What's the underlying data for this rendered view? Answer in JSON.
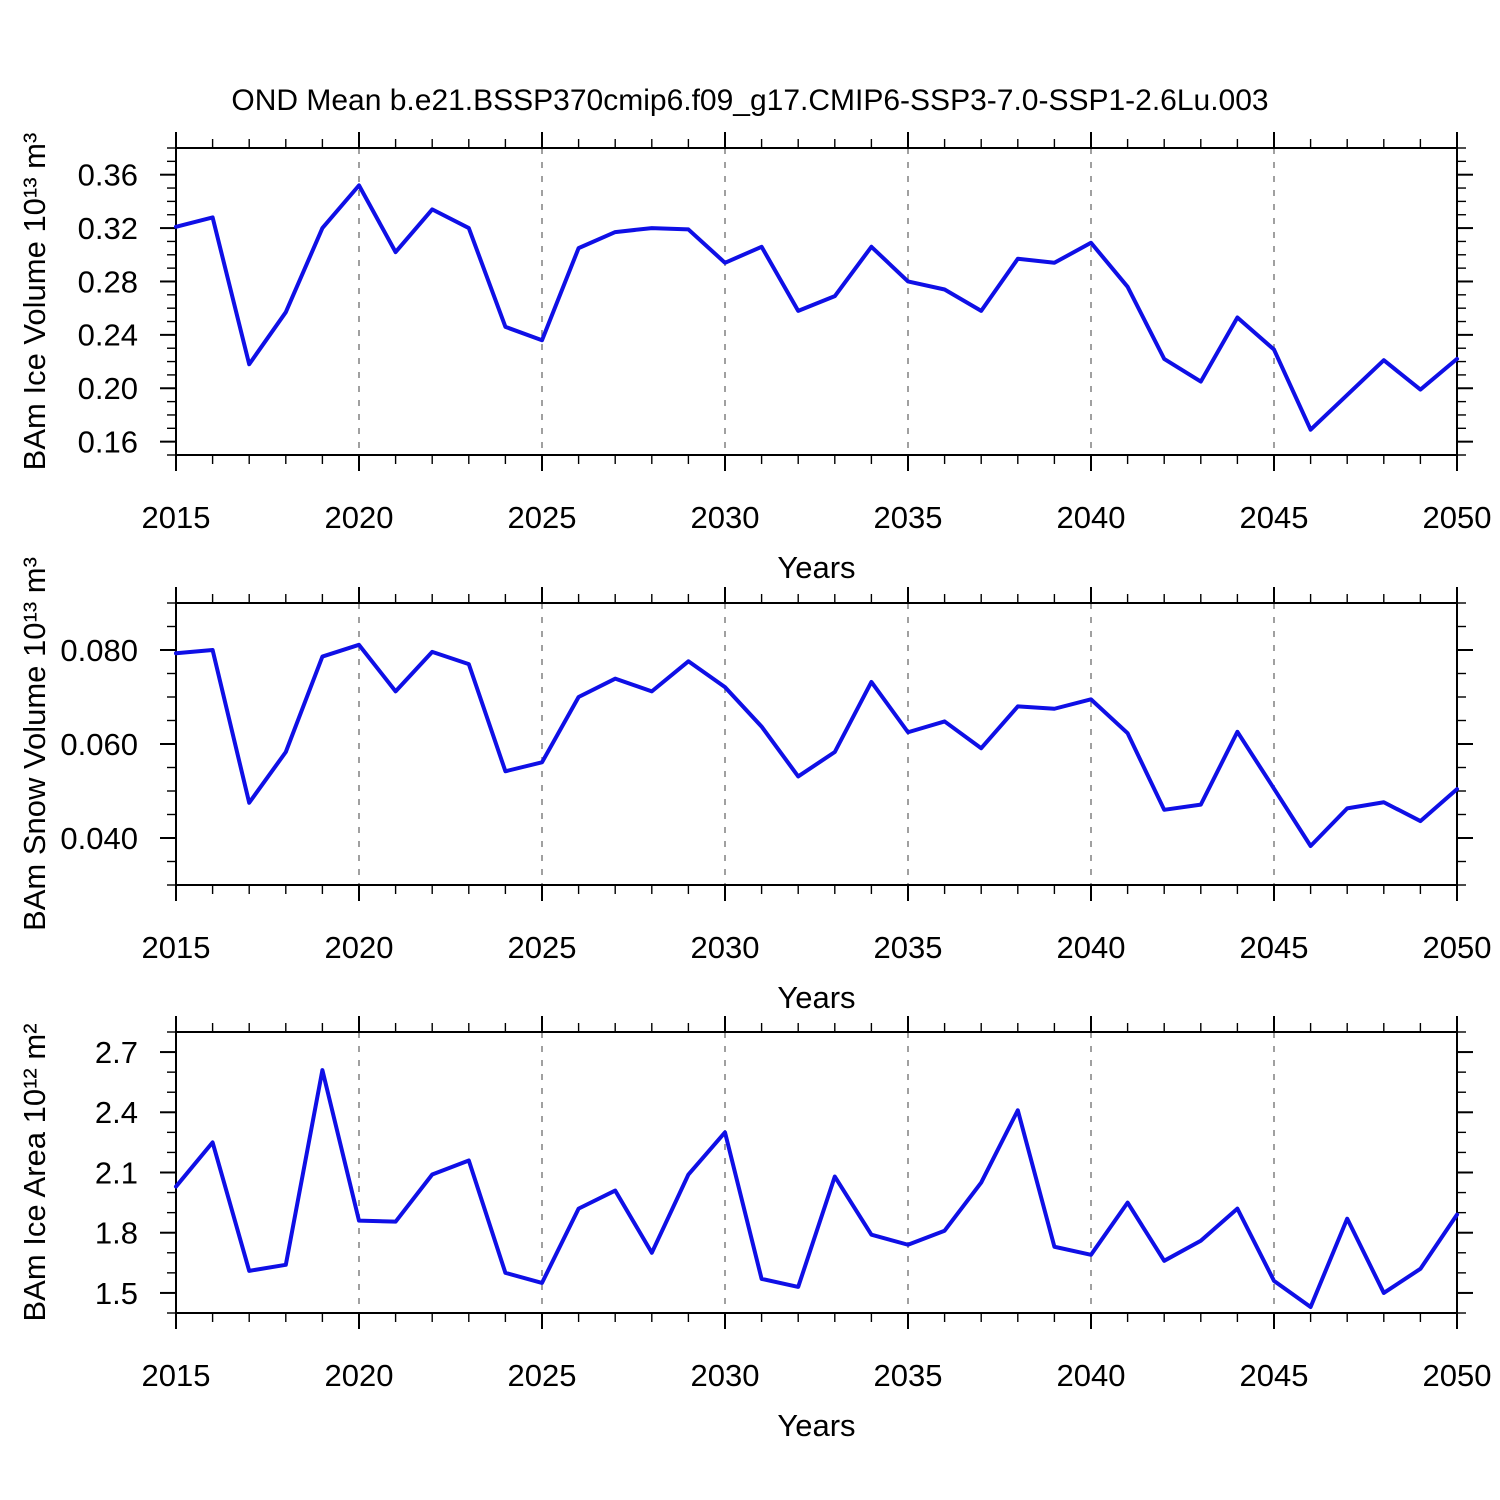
{
  "page": {
    "title": "OND Mean b.e21.BSSP370cmip6.f09_g17.CMIP6-SSP3-7.0-SSP1-2.6Lu.003"
  },
  "colors": {
    "line": "#0f0fe6",
    "grid": "#888888",
    "frame": "#000000"
  },
  "chart_data": [
    {
      "type": "line",
      "title": "OND Mean b.e21.BSSP370cmip6.f09_g17.CMIP6-SSP3-7.0-SSP1-2.6Lu.003",
      "ylabel": "BAm Ice Volume 10¹³ m³",
      "xlabel": "Years",
      "xlim": [
        2015,
        2050
      ],
      "ylim": [
        0.15,
        0.38
      ],
      "x_major_ticks": [
        2015,
        2020,
        2025,
        2030,
        2035,
        2040,
        2045,
        2050
      ],
      "x_tick_labels": [
        "2015",
        "2020",
        "2025",
        "2030",
        "2035",
        "2040",
        "2045",
        "2050"
      ],
      "x_minor_step": 1,
      "y_major_ticks": [
        0.16,
        0.2,
        0.24,
        0.28,
        0.32,
        0.36
      ],
      "y_tick_labels": [
        "0.16",
        "0.20",
        "0.24",
        "0.28",
        "0.32",
        "0.36"
      ],
      "y_minor_step": 0.01,
      "grid_x": [
        2020,
        2025,
        2030,
        2035,
        2040,
        2045
      ],
      "grid_style": "dashed-vertical",
      "legend": "none",
      "x": [
        2015,
        2016,
        2017,
        2018,
        2019,
        2020,
        2021,
        2022,
        2023,
        2024,
        2025,
        2026,
        2027,
        2028,
        2029,
        2030,
        2031,
        2032,
        2033,
        2034,
        2035,
        2036,
        2037,
        2038,
        2039,
        2040,
        2041,
        2042,
        2043,
        2044,
        2045,
        2046,
        2047,
        2048,
        2049,
        2050
      ],
      "y": [
        0.321,
        0.328,
        0.218,
        0.257,
        0.32,
        0.352,
        0.302,
        0.334,
        0.32,
        0.246,
        0.236,
        0.305,
        0.317,
        0.32,
        0.319,
        0.294,
        0.306,
        0.258,
        0.269,
        0.306,
        0.28,
        0.274,
        0.258,
        0.297,
        0.294,
        0.309,
        0.276,
        0.222,
        0.205,
        0.253,
        0.229,
        0.169,
        0.195,
        0.221,
        0.199,
        0.222
      ]
    },
    {
      "type": "line",
      "ylabel": "BAm Snow Volume 10¹³ m³",
      "xlabel": "Years",
      "xlim": [
        2015,
        2050
      ],
      "ylim": [
        0.03,
        0.09
      ],
      "x_major_ticks": [
        2015,
        2020,
        2025,
        2030,
        2035,
        2040,
        2045,
        2050
      ],
      "x_tick_labels": [
        "2015",
        "2020",
        "2025",
        "2030",
        "2035",
        "2040",
        "2045",
        "2050"
      ],
      "x_minor_step": 1,
      "y_major_ticks": [
        0.04,
        0.06,
        0.08
      ],
      "y_tick_labels": [
        "0.040",
        "0.060",
        "0.080"
      ],
      "y_minor_step": 0.005,
      "grid_x": [
        2020,
        2025,
        2030,
        2035,
        2040,
        2045
      ],
      "grid_style": "dashed-vertical",
      "legend": "none",
      "x": [
        2015,
        2016,
        2017,
        2018,
        2019,
        2020,
        2021,
        2022,
        2023,
        2024,
        2025,
        2026,
        2027,
        2028,
        2029,
        2030,
        2031,
        2032,
        2033,
        2034,
        2035,
        2036,
        2037,
        2038,
        2039,
        2040,
        2041,
        2042,
        2043,
        2044,
        2045,
        2046,
        2047,
        2048,
        2049,
        2050
      ],
      "y": [
        0.0793,
        0.08,
        0.0475,
        0.0583,
        0.0786,
        0.0811,
        0.0712,
        0.0796,
        0.077,
        0.0542,
        0.0561,
        0.07,
        0.0739,
        0.0712,
        0.0776,
        0.0721,
        0.0637,
        0.0531,
        0.0583,
        0.0732,
        0.0625,
        0.0648,
        0.0591,
        0.068,
        0.0675,
        0.0695,
        0.0623,
        0.046,
        0.0471,
        0.0626,
        0.0505,
        0.0383,
        0.0463,
        0.0476,
        0.0436,
        0.0504
      ]
    },
    {
      "type": "line",
      "ylabel": "BAm Ice Area 10¹² m²",
      "xlabel": "Years",
      "xlim": [
        2015,
        2050
      ],
      "ylim": [
        1.4,
        2.8
      ],
      "x_major_ticks": [
        2015,
        2020,
        2025,
        2030,
        2035,
        2040,
        2045,
        2050
      ],
      "x_tick_labels": [
        "2015",
        "2020",
        "2025",
        "2030",
        "2035",
        "2040",
        "2045",
        "2050"
      ],
      "x_minor_step": 1,
      "y_major_ticks": [
        1.5,
        1.8,
        2.1,
        2.4,
        2.7
      ],
      "y_tick_labels": [
        "1.5",
        "1.8",
        "2.1",
        "2.4",
        "2.7"
      ],
      "y_minor_step": 0.1,
      "grid_x": [
        2020,
        2025,
        2030,
        2035,
        2040,
        2045
      ],
      "grid_style": "dashed-vertical",
      "legend": "none",
      "x": [
        2015,
        2016,
        2017,
        2018,
        2019,
        2020,
        2021,
        2022,
        2023,
        2024,
        2025,
        2026,
        2027,
        2028,
        2029,
        2030,
        2031,
        2032,
        2033,
        2034,
        2035,
        2036,
        2037,
        2038,
        2039,
        2040,
        2041,
        2042,
        2043,
        2044,
        2045,
        2046,
        2047,
        2048,
        2049,
        2050
      ],
      "y": [
        2.03,
        2.25,
        1.61,
        1.64,
        2.61,
        1.86,
        1.855,
        2.09,
        2.16,
        1.6,
        1.55,
        1.92,
        2.01,
        1.7,
        2.09,
        2.3,
        1.57,
        1.53,
        2.08,
        1.79,
        1.74,
        1.81,
        2.05,
        2.41,
        1.73,
        1.69,
        1.95,
        1.66,
        1.76,
        1.92,
        1.56,
        1.43,
        1.87,
        1.5,
        1.62,
        1.89
      ]
    }
  ]
}
